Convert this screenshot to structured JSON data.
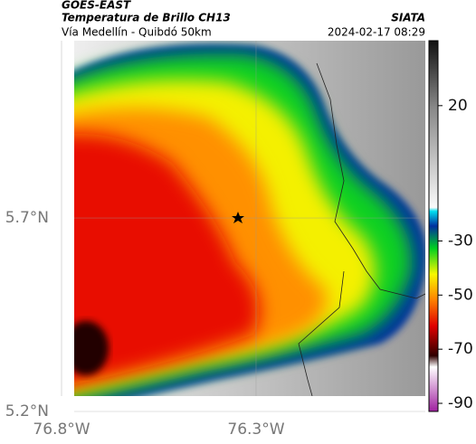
{
  "header": {
    "source": "GOES-EAST",
    "title": "Temperatura de Brillo CH13",
    "subtitle": "Vía Medellín - Quibdó 50km",
    "brand": "SIATA",
    "timestamp": "2024-02-17 08:29"
  },
  "map": {
    "xlim": [
      -76.8,
      -75.865
    ],
    "ylim": [
      5.2,
      6.158
    ],
    "xticks": [
      {
        "value": -76.8,
        "label": "76.8°W"
      },
      {
        "value": -76.3,
        "label": "76.3°W"
      }
    ],
    "yticks": [
      {
        "value": 5.2,
        "label": "5.2°N"
      },
      {
        "value": 5.7,
        "label": "5.7°N"
      }
    ]
  },
  "colorbar": {
    "lim": [
      -93,
      44
    ],
    "ticks": [
      20,
      -30,
      -50,
      -70,
      -90
    ]
  }
}
